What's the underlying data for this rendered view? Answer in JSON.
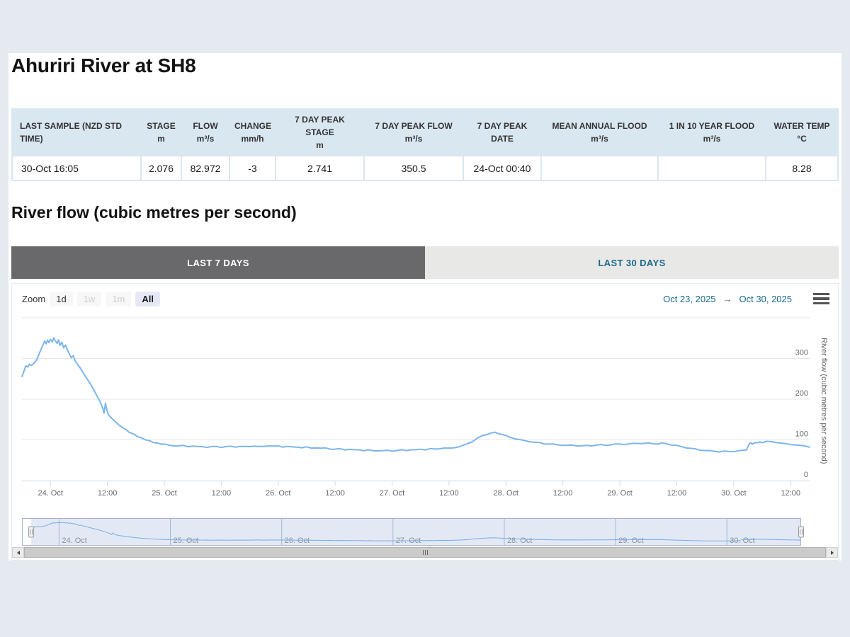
{
  "page": {
    "title": "Ahuriri River at SH8",
    "section_heading": "River flow (cubic metres per second)"
  },
  "colors": {
    "page_bg": "#e4eaef",
    "table_bg": "#d9e7f1",
    "active_tab_bg": "#69696b",
    "tab_link_text": "#1c6a8d",
    "range_text": "#17688c",
    "series_line": "#7cb5ec"
  },
  "summary_table": {
    "columns": [
      {
        "label": "LAST SAMPLE (NZD STD TIME)",
        "unit": ""
      },
      {
        "label": "STAGE",
        "unit": "m"
      },
      {
        "label": "FLOW",
        "unit": "m³/s"
      },
      {
        "label": "CHANGE",
        "unit": "mm/h"
      },
      {
        "label": "7 DAY PEAK STAGE",
        "unit": "m"
      },
      {
        "label": "7 DAY PEAK FLOW",
        "unit": "m³/s"
      },
      {
        "label": "7 DAY PEAK DATE",
        "unit": ""
      },
      {
        "label": "MEAN ANNUAL FLOOD",
        "unit": "m³/s"
      },
      {
        "label": "1 IN 10 YEAR FLOOD",
        "unit": "m³/s"
      },
      {
        "label": "WATER TEMP",
        "unit": "°C"
      }
    ],
    "values": [
      "30-Oct 16:05",
      "2.076",
      "82.972",
      "-3",
      "2.741",
      "350.5",
      "24-Oct 00:40",
      "",
      "",
      "8.28"
    ]
  },
  "tabs": [
    {
      "label": "LAST 7 DAYS",
      "active": true
    },
    {
      "label": "LAST 30 DAYS",
      "active": false
    }
  ],
  "chart": {
    "zoom_label": "Zoom",
    "zoom_buttons": [
      {
        "label": "1d",
        "state": "normal"
      },
      {
        "label": "1w",
        "state": "disabled"
      },
      {
        "label": "1m",
        "state": "disabled"
      },
      {
        "label": "All",
        "state": "selected"
      }
    ],
    "range_from": "Oct 23, 2025",
    "range_arrow": "→",
    "range_to": "Oct 30, 2025"
  },
  "chart_data": {
    "type": "line",
    "title": "",
    "ylabel": "River flow (cubic metres per second)",
    "ylim": [
      0,
      400
    ],
    "yticks": [
      0,
      100,
      200,
      300
    ],
    "grid": true,
    "legend": false,
    "t_unit": "hours since 2025-10-23 18:00 (x axis), values in m³/s",
    "x_ticks": [
      [
        6,
        "24. Oct"
      ],
      [
        18,
        "12:00"
      ],
      [
        30,
        "25. Oct"
      ],
      [
        42,
        "12:00"
      ],
      [
        54,
        "26. Oct"
      ],
      [
        66,
        "12:00"
      ],
      [
        78,
        "27. Oct"
      ],
      [
        90,
        "12:00"
      ],
      [
        102,
        "28. Oct"
      ],
      [
        114,
        "12:00"
      ],
      [
        126,
        "29. Oct"
      ],
      [
        138,
        "12:00"
      ],
      [
        150,
        "30. Oct"
      ],
      [
        162,
        "12:00"
      ]
    ],
    "navigator_ticks": [
      [
        6,
        "24. Oct"
      ],
      [
        30,
        "25. Oct"
      ],
      [
        54,
        "26. Oct"
      ],
      [
        78,
        "27. Oct"
      ],
      [
        102,
        "28. Oct"
      ],
      [
        126,
        "29. Oct"
      ],
      [
        150,
        "30. Oct"
      ]
    ],
    "series": [
      {
        "name": "River flow",
        "color": "#7cb5ec",
        "points": [
          [
            0,
            256
          ],
          [
            0.4,
            268
          ],
          [
            0.8,
            282
          ],
          [
            1.2,
            279
          ],
          [
            1.6,
            286
          ],
          [
            2,
            283
          ],
          [
            2.4,
            287
          ],
          [
            2.8,
            292
          ],
          [
            3.2,
            299
          ],
          [
            3.6,
            311
          ],
          [
            4,
            322
          ],
          [
            4.4,
            333
          ],
          [
            4.8,
            343
          ],
          [
            5.1,
            336
          ],
          [
            5.4,
            345
          ],
          [
            5.7,
            339
          ],
          [
            6,
            347
          ],
          [
            6.4,
            341
          ],
          [
            6.7,
            350.5
          ],
          [
            7,
            344
          ],
          [
            7.4,
            337
          ],
          [
            7.7,
            346
          ],
          [
            8,
            332
          ],
          [
            8.4,
            340
          ],
          [
            8.8,
            326
          ],
          [
            9.2,
            333
          ],
          [
            9.6,
            321
          ],
          [
            10,
            311
          ],
          [
            10.4,
            302
          ],
          [
            10.8,
            307
          ],
          [
            11.2,
            295
          ],
          [
            11.6,
            287
          ],
          [
            12,
            281
          ],
          [
            12.5,
            273
          ],
          [
            13,
            263
          ],
          [
            13.5,
            254
          ],
          [
            14,
            245
          ],
          [
            14.5,
            236
          ],
          [
            15,
            226
          ],
          [
            15.5,
            215
          ],
          [
            16,
            204
          ],
          [
            16.5,
            193
          ],
          [
            17,
            179
          ],
          [
            17.3,
            166
          ],
          [
            17.6,
            190
          ],
          [
            17.9,
            173
          ],
          [
            18.2,
            163
          ],
          [
            18.6,
            157
          ],
          [
            19,
            152
          ],
          [
            19.5,
            147
          ],
          [
            20,
            141
          ],
          [
            20.5,
            136
          ],
          [
            21,
            132
          ],
          [
            21.5,
            128
          ],
          [
            22,
            124
          ],
          [
            22.5,
            120
          ],
          [
            23,
            117
          ],
          [
            23.5,
            114
          ],
          [
            24,
            111
          ],
          [
            24.5,
            108
          ],
          [
            25,
            105
          ],
          [
            25.5,
            103
          ],
          [
            26,
            101
          ],
          [
            26.5,
            99
          ],
          [
            27,
            97
          ],
          [
            27.5,
            95
          ],
          [
            28,
            93
          ],
          [
            28.5,
            92
          ],
          [
            29,
            91
          ],
          [
            29.5,
            90
          ],
          [
            30,
            89
          ],
          [
            31,
            87
          ],
          [
            32,
            86
          ],
          [
            33,
            85
          ],
          [
            34,
            86
          ],
          [
            35,
            84
          ],
          [
            36,
            85
          ],
          [
            37,
            83
          ],
          [
            38,
            84
          ],
          [
            39,
            82
          ],
          [
            40,
            83
          ],
          [
            41,
            84
          ],
          [
            42,
            82
          ],
          [
            43,
            83
          ],
          [
            44,
            84
          ],
          [
            45,
            83
          ],
          [
            46,
            84
          ],
          [
            47,
            83
          ],
          [
            48,
            84
          ],
          [
            49,
            85
          ],
          [
            50,
            83
          ],
          [
            51,
            84
          ],
          [
            52,
            86
          ],
          [
            53,
            84
          ],
          [
            54,
            85
          ],
          [
            55,
            83
          ],
          [
            56,
            84
          ],
          [
            57,
            82
          ],
          [
            58,
            83
          ],
          [
            59,
            81
          ],
          [
            60,
            82
          ],
          [
            61,
            80
          ],
          [
            62,
            81
          ],
          [
            63,
            79
          ],
          [
            64,
            80
          ],
          [
            65,
            78
          ],
          [
            66,
            77
          ],
          [
            67,
            78
          ],
          [
            68,
            76
          ],
          [
            69,
            77
          ],
          [
            70,
            75
          ],
          [
            71,
            76
          ],
          [
            72,
            74
          ],
          [
            73,
            75
          ],
          [
            74,
            73
          ],
          [
            75,
            74
          ],
          [
            76,
            73
          ],
          [
            77,
            74
          ],
          [
            78,
            73
          ],
          [
            79,
            74
          ],
          [
            80,
            75
          ],
          [
            81,
            74
          ],
          [
            82,
            76
          ],
          [
            83,
            75
          ],
          [
            84,
            77
          ],
          [
            85,
            76
          ],
          [
            86,
            78
          ],
          [
            87,
            77
          ],
          [
            88,
            79
          ],
          [
            89,
            80
          ],
          [
            90,
            79
          ],
          [
            91,
            81
          ],
          [
            92,
            83
          ],
          [
            93,
            86
          ],
          [
            94,
            91
          ],
          [
            95,
            97
          ],
          [
            96,
            104
          ],
          [
            97,
            110
          ],
          [
            98,
            114
          ],
          [
            99,
            117
          ],
          [
            99.7,
            118
          ],
          [
            100.4,
            116
          ],
          [
            101,
            114
          ],
          [
            102,
            110
          ],
          [
            103,
            106
          ],
          [
            104,
            103
          ],
          [
            105,
            100
          ],
          [
            106,
            98
          ],
          [
            107,
            96
          ],
          [
            108,
            94
          ],
          [
            109,
            93
          ],
          [
            110,
            91
          ],
          [
            111,
            90
          ],
          [
            112,
            89
          ],
          [
            113,
            88
          ],
          [
            114,
            87
          ],
          [
            115,
            86
          ],
          [
            116,
            87
          ],
          [
            117,
            86
          ],
          [
            118,
            85
          ],
          [
            119,
            86
          ],
          [
            120,
            86
          ],
          [
            121,
            87
          ],
          [
            122,
            88
          ],
          [
            123,
            87
          ],
          [
            124,
            88
          ],
          [
            125,
            89
          ],
          [
            126,
            90
          ],
          [
            127,
            89
          ],
          [
            128,
            90
          ],
          [
            129,
            91
          ],
          [
            130,
            92
          ],
          [
            131,
            91
          ],
          [
            132,
            92
          ],
          [
            133,
            91
          ],
          [
            134,
            90
          ],
          [
            135,
            92
          ],
          [
            136,
            90
          ],
          [
            137,
            88
          ],
          [
            138,
            86
          ],
          [
            139,
            83
          ],
          [
            140,
            81
          ],
          [
            141,
            79
          ],
          [
            142,
            77
          ],
          [
            143,
            75
          ],
          [
            144,
            74
          ],
          [
            145,
            73
          ],
          [
            146,
            72
          ],
          [
            147,
            71
          ],
          [
            148,
            72
          ],
          [
            149,
            71
          ],
          [
            150,
            72
          ],
          [
            151,
            73
          ],
          [
            152,
            74
          ],
          [
            152.7,
            76
          ],
          [
            153.1,
            87
          ],
          [
            153.5,
            92
          ],
          [
            154,
            90
          ],
          [
            154.5,
            94
          ],
          [
            155,
            92
          ],
          [
            155.5,
            95
          ],
          [
            156,
            94
          ],
          [
            157,
            96
          ],
          [
            158,
            95
          ],
          [
            159,
            94
          ],
          [
            160,
            92
          ],
          [
            161,
            90
          ],
          [
            162,
            89
          ],
          [
            163,
            88
          ],
          [
            164,
            86
          ],
          [
            165,
            85
          ],
          [
            166,
            83
          ]
        ]
      }
    ]
  }
}
